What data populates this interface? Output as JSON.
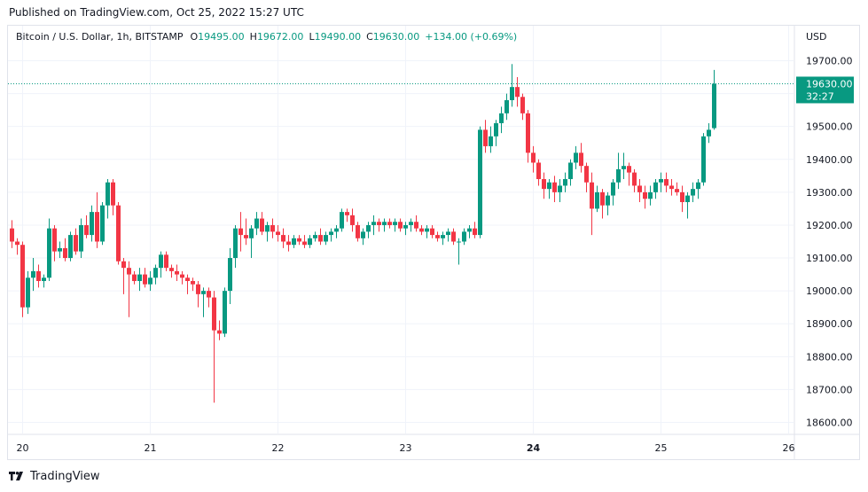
{
  "header": {
    "published": "Published on TradingView.com, Oct 25, 2022 15:27 UTC"
  },
  "legend": {
    "symbol": "Bitcoin / U.S. Dollar, 1h, BITSTAMP",
    "o_label": "O",
    "o_value": "19495.00",
    "h_label": "H",
    "h_value": "19672.00",
    "l_label": "L",
    "l_value": "19490.00",
    "c_label": "C",
    "c_value": "19630.00",
    "change": "+134.00 (+0.69%)"
  },
  "price_tag": {
    "price": "19630.00",
    "countdown": "32:27"
  },
  "footer": {
    "brand": "TradingView"
  },
  "colors": {
    "up": "#089981",
    "down": "#f23645",
    "grid": "#f0f3fa",
    "axis_text": "#131722"
  },
  "chart_data": {
    "type": "candlestick",
    "currency_label": "USD",
    "y_ticks": [
      19700,
      19600,
      19500,
      19400,
      19300,
      19200,
      19100,
      19000,
      18900,
      18800,
      18700,
      18600
    ],
    "y_tick_labels": [
      "19700.00",
      "19600.00",
      "19500.00",
      "19400.00",
      "19300.00",
      "19200.00",
      "19100.00",
      "19000.00",
      "18900.00",
      "18800.00",
      "18700.00",
      "18600.00"
    ],
    "ylim": [
      18560,
      19775
    ],
    "x_ticks": [
      {
        "label": "20",
        "index": 2,
        "bold": false
      },
      {
        "label": "21",
        "index": 26,
        "bold": false
      },
      {
        "label": "22",
        "index": 50,
        "bold": false
      },
      {
        "label": "23",
        "index": 74,
        "bold": false
      },
      {
        "label": "24",
        "index": 98,
        "bold": true
      },
      {
        "label": "25",
        "index": 122,
        "bold": false
      },
      {
        "label": "26",
        "index": 146,
        "bold": false
      }
    ],
    "last_price": 19630,
    "candles": [
      [
        19190,
        19215,
        19130,
        19150
      ],
      [
        19150,
        19160,
        19110,
        19140
      ],
      [
        19140,
        19150,
        18920,
        18950
      ],
      [
        18950,
        19060,
        18930,
        19040
      ],
      [
        19040,
        19100,
        19000,
        19060
      ],
      [
        19060,
        19080,
        19010,
        19030
      ],
      [
        19030,
        19050,
        19010,
        19040
      ],
      [
        19040,
        19220,
        19030,
        19190
      ],
      [
        19190,
        19200,
        19090,
        19120
      ],
      [
        19120,
        19150,
        19100,
        19130
      ],
      [
        19130,
        19160,
        19090,
        19100
      ],
      [
        19100,
        19180,
        19090,
        19170
      ],
      [
        19170,
        19190,
        19110,
        19120
      ],
      [
        19120,
        19220,
        19100,
        19200
      ],
      [
        19200,
        19230,
        19160,
        19170
      ],
      [
        19170,
        19260,
        19150,
        19240
      ],
      [
        19240,
        19300,
        19130,
        19150
      ],
      [
        19150,
        19270,
        19140,
        19260
      ],
      [
        19260,
        19340,
        19220,
        19330
      ],
      [
        19330,
        19340,
        19230,
        19260
      ],
      [
        19260,
        19270,
        19080,
        19090
      ],
      [
        19090,
        19100,
        18990,
        19070
      ],
      [
        19070,
        19090,
        18920,
        19050
      ],
      [
        19050,
        19060,
        19020,
        19030
      ],
      [
        19030,
        19070,
        19000,
        19050
      ],
      [
        19050,
        19070,
        19010,
        19020
      ],
      [
        19020,
        19060,
        19000,
        19040
      ],
      [
        19040,
        19080,
        19020,
        19070
      ],
      [
        19070,
        19120,
        19040,
        19110
      ],
      [
        19110,
        19120,
        19060,
        19070
      ],
      [
        19070,
        19080,
        19040,
        19060
      ],
      [
        19060,
        19080,
        19030,
        19050
      ],
      [
        19050,
        19060,
        19020,
        19040
      ],
      [
        19040,
        19050,
        18990,
        19030
      ],
      [
        19030,
        19040,
        19000,
        19020
      ],
      [
        19020,
        19030,
        18950,
        18990
      ],
      [
        18990,
        19010,
        18920,
        19000
      ],
      [
        19000,
        19010,
        18950,
        18980
      ],
      [
        18980,
        19000,
        18660,
        18880
      ],
      [
        18880,
        18910,
        18850,
        18870
      ],
      [
        18870,
        19010,
        18860,
        19000
      ],
      [
        19000,
        19130,
        18960,
        19100
      ],
      [
        19100,
        19200,
        19070,
        19190
      ],
      [
        19190,
        19240,
        19120,
        19170
      ],
      [
        19170,
        19220,
        19140,
        19160
      ],
      [
        19160,
        19200,
        19100,
        19190
      ],
      [
        19190,
        19240,
        19170,
        19220
      ],
      [
        19220,
        19240,
        19170,
        19180
      ],
      [
        19180,
        19210,
        19150,
        19200
      ],
      [
        19200,
        19220,
        19160,
        19180
      ],
      [
        19180,
        19200,
        19150,
        19170
      ],
      [
        19170,
        19190,
        19130,
        19150
      ],
      [
        19150,
        19170,
        19120,
        19140
      ],
      [
        19140,
        19170,
        19130,
        19160
      ],
      [
        19160,
        19170,
        19140,
        19150
      ],
      [
        19150,
        19170,
        19130,
        19140
      ],
      [
        19140,
        19170,
        19130,
        19160
      ],
      [
        19160,
        19180,
        19150,
        19170
      ],
      [
        19170,
        19190,
        19140,
        19150
      ],
      [
        19150,
        19180,
        19140,
        19170
      ],
      [
        19170,
        19190,
        19150,
        19180
      ],
      [
        19180,
        19200,
        19160,
        19190
      ],
      [
        19190,
        19250,
        19180,
        19240
      ],
      [
        19240,
        19250,
        19210,
        19230
      ],
      [
        19230,
        19250,
        19180,
        19200
      ],
      [
        19200,
        19210,
        19150,
        19160
      ],
      [
        19160,
        19190,
        19140,
        19180
      ],
      [
        19180,
        19210,
        19160,
        19200
      ],
      [
        19200,
        19230,
        19170,
        19210
      ],
      [
        19210,
        19220,
        19180,
        19200
      ],
      [
        19200,
        19220,
        19180,
        19210
      ],
      [
        19210,
        19220,
        19190,
        19200
      ],
      [
        19200,
        19220,
        19180,
        19210
      ],
      [
        19210,
        19220,
        19180,
        19190
      ],
      [
        19190,
        19210,
        19170,
        19200
      ],
      [
        19200,
        19220,
        19180,
        19210
      ],
      [
        19210,
        19230,
        19180,
        19190
      ],
      [
        19190,
        19200,
        19170,
        19180
      ],
      [
        19180,
        19200,
        19160,
        19190
      ],
      [
        19190,
        19200,
        19160,
        19170
      ],
      [
        19170,
        19180,
        19150,
        19160
      ],
      [
        19160,
        19180,
        19140,
        19170
      ],
      [
        19170,
        19190,
        19150,
        19180
      ],
      [
        19180,
        19190,
        19140,
        19150
      ],
      [
        19150,
        19160,
        19080,
        19150
      ],
      [
        19150,
        19190,
        19140,
        19180
      ],
      [
        19180,
        19200,
        19160,
        19190
      ],
      [
        19190,
        19210,
        19160,
        19170
      ],
      [
        19170,
        19500,
        19160,
        19490
      ],
      [
        19490,
        19520,
        19420,
        19440
      ],
      [
        19440,
        19500,
        19420,
        19470
      ],
      [
        19470,
        19520,
        19440,
        19510
      ],
      [
        19510,
        19560,
        19480,
        19540
      ],
      [
        19540,
        19600,
        19520,
        19580
      ],
      [
        19580,
        19690,
        19560,
        19620
      ],
      [
        19620,
        19650,
        19560,
        19590
      ],
      [
        19590,
        19600,
        19520,
        19540
      ],
      [
        19540,
        19550,
        19390,
        19420
      ],
      [
        19420,
        19440,
        19360,
        19390
      ],
      [
        19390,
        19400,
        19320,
        19340
      ],
      [
        19340,
        19360,
        19280,
        19310
      ],
      [
        19310,
        19340,
        19280,
        19330
      ],
      [
        19330,
        19350,
        19270,
        19300
      ],
      [
        19300,
        19340,
        19270,
        19320
      ],
      [
        19320,
        19360,
        19300,
        19340
      ],
      [
        19340,
        19400,
        19320,
        19390
      ],
      [
        19390,
        19440,
        19370,
        19420
      ],
      [
        19420,
        19450,
        19360,
        19380
      ],
      [
        19380,
        19390,
        19300,
        19330
      ],
      [
        19330,
        19360,
        19170,
        19250
      ],
      [
        19250,
        19320,
        19240,
        19300
      ],
      [
        19300,
        19310,
        19220,
        19260
      ],
      [
        19260,
        19300,
        19230,
        19290
      ],
      [
        19290,
        19340,
        19260,
        19330
      ],
      [
        19330,
        19420,
        19310,
        19370
      ],
      [
        19370,
        19420,
        19340,
        19380
      ],
      [
        19380,
        19390,
        19320,
        19360
      ],
      [
        19360,
        19370,
        19300,
        19320
      ],
      [
        19320,
        19340,
        19270,
        19300
      ],
      [
        19300,
        19320,
        19250,
        19280
      ],
      [
        19280,
        19320,
        19260,
        19300
      ],
      [
        19300,
        19340,
        19280,
        19330
      ],
      [
        19330,
        19360,
        19300,
        19340
      ],
      [
        19340,
        19360,
        19300,
        19320
      ],
      [
        19320,
        19340,
        19290,
        19310
      ],
      [
        19310,
        19330,
        19290,
        19300
      ],
      [
        19300,
        19320,
        19240,
        19270
      ],
      [
        19270,
        19300,
        19220,
        19290
      ],
      [
        19290,
        19330,
        19270,
        19310
      ],
      [
        19310,
        19340,
        19280,
        19330
      ],
      [
        19330,
        19480,
        19320,
        19470
      ],
      [
        19470,
        19510,
        19450,
        19490
      ],
      [
        19495,
        19672,
        19490,
        19630
      ]
    ]
  }
}
